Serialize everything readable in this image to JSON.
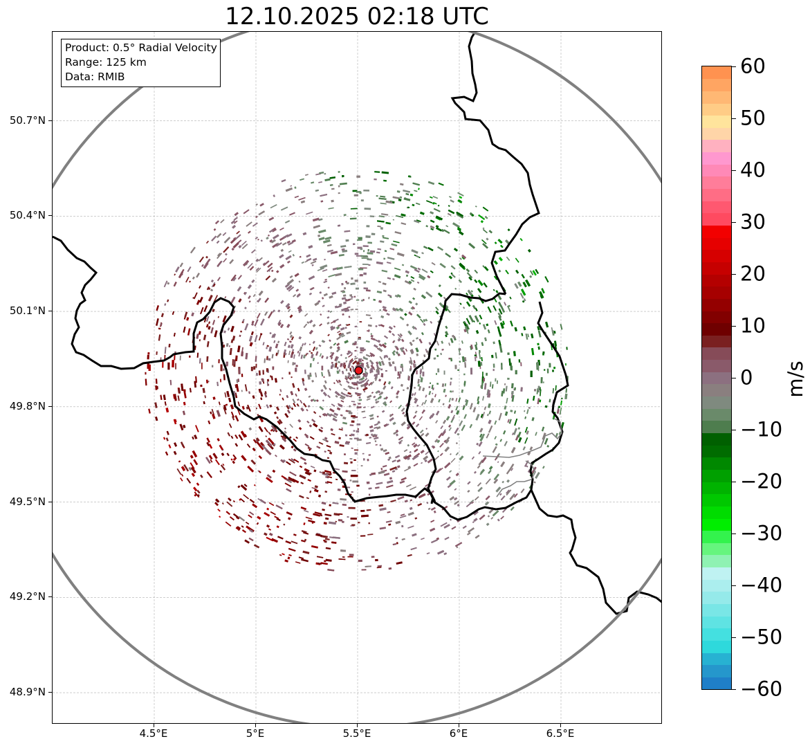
{
  "title": "12.10.2025 02:18 UTC",
  "info": {
    "lines": [
      "Product: 0.5° Radial Velocity",
      "Range: 125 km",
      "Data: RMIB"
    ]
  },
  "axes": {
    "lat_labels": [
      "50.7°N",
      "50.4°N",
      "50.1°N",
      "49.8°N",
      "49.5°N",
      "49.2°N",
      "48.9°N"
    ],
    "lat_values": [
      50.7,
      50.4,
      50.1,
      49.8,
      49.5,
      49.2,
      48.9
    ],
    "lon_labels": [
      "4.5°E",
      "5°E",
      "5.5°E",
      "6°E",
      "6.5°E"
    ],
    "lon_values": [
      4.5,
      5.0,
      5.5,
      6.0,
      6.5
    ],
    "lat_range": [
      48.8,
      50.98
    ],
    "lon_range": [
      4.0,
      7.0
    ]
  },
  "radar": {
    "site_lon": 5.505,
    "site_lat": 49.914,
    "range_km": 125,
    "site_color": "#e8161b",
    "ring_color": "#808080"
  },
  "colorbar": {
    "unit": "m/s",
    "min": -60,
    "max": 60,
    "tick_labels": [
      "60",
      "50",
      "40",
      "30",
      "20",
      "10",
      "0",
      "−10",
      "−20",
      "−30",
      "−40",
      "−50",
      "−60"
    ],
    "tick_values": [
      60,
      50,
      40,
      30,
      20,
      10,
      0,
      -10,
      -20,
      -30,
      -40,
      -50,
      -60
    ],
    "colors": [
      "#1f7fc8",
      "#2597cc",
      "#27b2d2",
      "#2ed9dc",
      "#44e0e0",
      "#5fe3e3",
      "#79e6e6",
      "#95eaea",
      "#abeeee",
      "#bff2f2",
      "#8ff2b3",
      "#66f57e",
      "#33f34d",
      "#00ee00",
      "#00dc00",
      "#00c800",
      "#00b300",
      "#00a000",
      "#008800",
      "#006c00",
      "#006000",
      "#4e7d4e",
      "#6a8a6a",
      "#7f8a7f",
      "#8a7f7f",
      "#8c7080",
      "#8a5a6a",
      "#864b58",
      "#7a2020",
      "#6f0000",
      "#820000",
      "#940000",
      "#a60000",
      "#b40000",
      "#c60000",
      "#d60000",
      "#e60000",
      "#f20000",
      "#ff4a60",
      "#ff5870",
      "#ff6d85",
      "#ff7d9a",
      "#ff89b7",
      "#ff98cf",
      "#ffb1c0",
      "#ffd5a8",
      "#ffe49c",
      "#ffcc86",
      "#ffb874",
      "#ffa562",
      "#ff9250"
    ]
  },
  "legend_colors": {
    "border": "#000000",
    "grid": "#b0b0b0"
  }
}
